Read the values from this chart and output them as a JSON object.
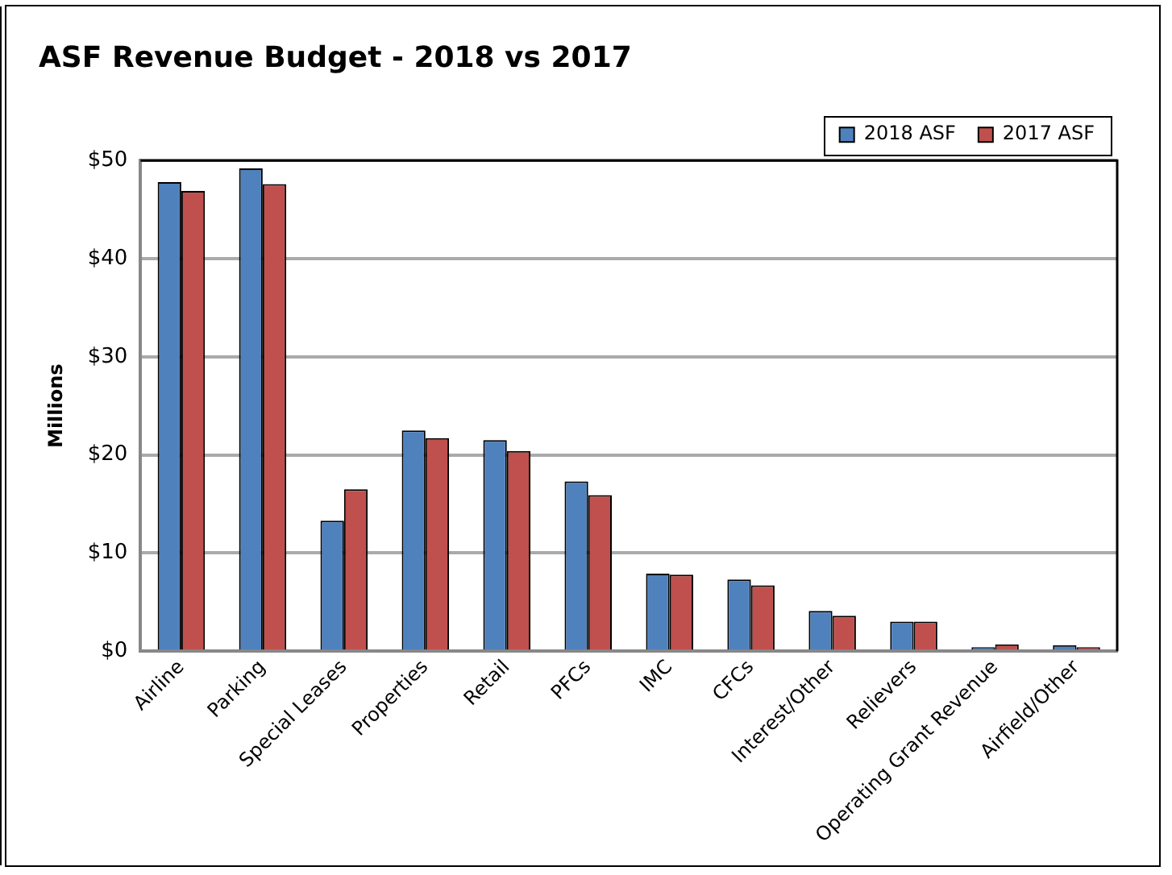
{
  "chart_data": {
    "type": "bar",
    "title": "ASF Revenue Budget - 2018 vs 2017",
    "ylabel": "Millions",
    "categories": [
      "Airline",
      "Parking",
      "Special Leases",
      "Properties",
      "Retail",
      "PFCs",
      "IMC",
      "CFCs",
      "Interest/Other",
      "Relievers",
      "Operating Grant Revenue",
      "Airfield/Other"
    ],
    "series": [
      {
        "name": "2018 ASF",
        "color": "#4f81bd",
        "values": [
          47.8,
          49.2,
          13.3,
          22.5,
          21.5,
          17.3,
          7.9,
          7.3,
          4.1,
          3.0,
          0.4,
          0.6
        ]
      },
      {
        "name": "2017 ASF",
        "color": "#c0504d",
        "values": [
          46.9,
          47.6,
          16.5,
          21.7,
          20.4,
          15.9,
          7.8,
          6.7,
          3.6,
          3.0,
          0.7,
          0.4
        ]
      }
    ],
    "ylim": [
      0,
      50
    ],
    "yticks": [
      {
        "value": 0,
        "label": "$0"
      },
      {
        "value": 10,
        "label": "$10"
      },
      {
        "value": 20,
        "label": "$20"
      },
      {
        "value": 30,
        "label": "$30"
      },
      {
        "value": 40,
        "label": "$40"
      },
      {
        "value": 50,
        "label": "$50"
      }
    ],
    "grid": "y",
    "legend": "top right"
  }
}
